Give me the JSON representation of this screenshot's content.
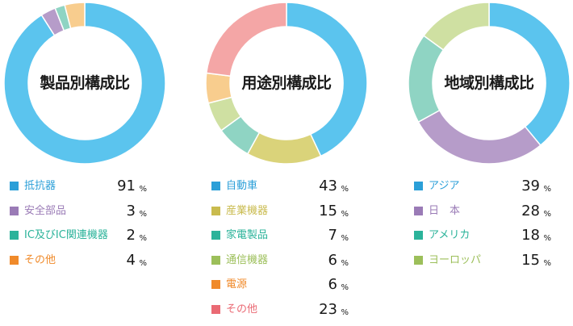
{
  "chart_data": [
    {
      "type": "pie",
      "title": "製品別構成比",
      "unit": "%",
      "slices": [
        {
          "label": "抵抗器",
          "value": 91,
          "color": "#5bc4ee",
          "label_color": "#2b9fd8"
        },
        {
          "label": "安全部品",
          "value": 3,
          "color": "#b69cc9",
          "label_color": "#9a7bb6"
        },
        {
          "label": "IC及びIC関連機器",
          "value": 2,
          "color": "#8fd4c3",
          "label_color": "#2bb39a"
        },
        {
          "label": "その他",
          "value": 4,
          "color": "#f8cd8e",
          "label_color": "#f08a2a"
        }
      ]
    },
    {
      "type": "pie",
      "title": "用途別構成比",
      "unit": "%",
      "slices": [
        {
          "label": "自動車",
          "value": 43,
          "color": "#5bc4ee",
          "label_color": "#2b9fd8"
        },
        {
          "label": "産業機器",
          "value": 15,
          "color": "#dad37a",
          "label_color": "#c9bb4e"
        },
        {
          "label": "家電製品",
          "value": 7,
          "color": "#8fd4c3",
          "label_color": "#2bb39a"
        },
        {
          "label": "通信機器",
          "value": 6,
          "color": "#cfe0a2",
          "label_color": "#9cbf5a"
        },
        {
          "label": "電源",
          "value": 6,
          "color": "#f8cd8e",
          "label_color": "#f08a2a"
        },
        {
          "label": "その他",
          "value": 23,
          "color": "#f4a6a6",
          "label_color": "#ea6a74"
        }
      ]
    },
    {
      "type": "pie",
      "title": "地域別構成比",
      "unit": "%",
      "slices": [
        {
          "label": "アジア",
          "value": 39,
          "color": "#5bc4ee",
          "label_color": "#2b9fd8"
        },
        {
          "label": "日　本",
          "value": 28,
          "color": "#b69cc9",
          "label_color": "#9a7bb6"
        },
        {
          "label": "アメリカ",
          "value": 18,
          "color": "#8fd4c3",
          "label_color": "#2bb39a"
        },
        {
          "label": "ヨーロッパ",
          "value": 15,
          "color": "#cfe0a2",
          "label_color": "#9cbf5a"
        }
      ]
    }
  ]
}
